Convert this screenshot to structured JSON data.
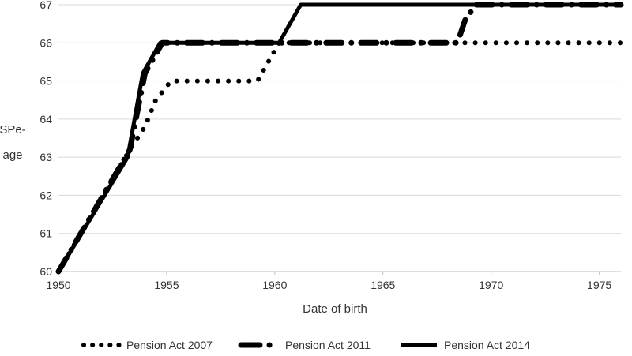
{
  "chart_data": {
    "type": "line",
    "xlabel": "Date of birth",
    "ylabel": "SPe-\nage",
    "xlim": [
      1950,
      1976
    ],
    "ylim": [
      60,
      67
    ],
    "xticks": [
      1950,
      1955,
      1960,
      1965,
      1970,
      1975
    ],
    "yticks": [
      60,
      61,
      62,
      63,
      64,
      65,
      66,
      67
    ],
    "grid": "horizontal",
    "legend_position": "bottom",
    "series": [
      {
        "name": "Pension Act 2007",
        "style": "dotted",
        "color": "#000000",
        "x": [
          1950.0,
          1953.3,
          1954.0,
          1954.5,
          1955.2,
          1959.2,
          1960.2,
          1968.3,
          1969.0,
          1976.0
        ],
        "y": [
          60.0,
          63.2,
          63.8,
          64.5,
          65.0,
          65.0,
          66.0,
          66.0,
          66.0,
          66.0
        ]
      },
      {
        "name": "Pension Act 2011",
        "style": "dash-dot",
        "color": "#000000",
        "x": [
          1950.0,
          1953.3,
          1954.0,
          1954.8,
          1960.0,
          1968.4,
          1968.5,
          1968.8,
          1969.3,
          1976.0
        ],
        "y": [
          60.0,
          63.2,
          65.2,
          66.0,
          66.0,
          66.0,
          66.1,
          66.6,
          67.0,
          67.0
        ]
      },
      {
        "name": "Pension Act 2014",
        "style": "solid",
        "color": "#000000",
        "x": [
          1950.0,
          1953.2,
          1953.9,
          1954.7,
          1960.2,
          1961.2,
          1976.0
        ],
        "y": [
          60.0,
          63.0,
          65.2,
          66.0,
          66.0,
          67.0,
          67.0
        ]
      }
    ]
  }
}
